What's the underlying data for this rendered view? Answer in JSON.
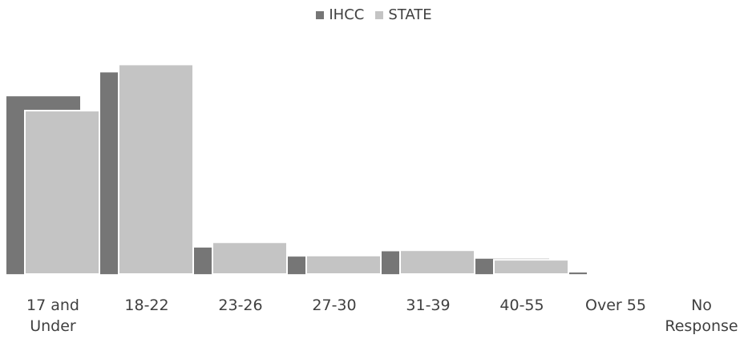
{
  "chart_data": {
    "type": "bar",
    "categories": [
      "17 and\nUnder",
      "18-22",
      "23-26",
      "27-30",
      "31-39",
      "40-55",
      "Over 55",
      "No\nResponse"
    ],
    "series": [
      {
        "name": "IHCC",
        "color": "#767676",
        "values": [
          33.5,
          38.0,
          5.0,
          3.3,
          4.3,
          2.9,
          0.3,
          0.0
        ]
      },
      {
        "name": "STATE",
        "color": "#c4c4c4",
        "values": [
          30.8,
          39.5,
          6.0,
          3.5,
          4.5,
          2.7,
          0.2,
          0.0
        ]
      }
    ],
    "ylim": [
      0,
      45
    ],
    "legend_position": "top",
    "grid": false
  }
}
